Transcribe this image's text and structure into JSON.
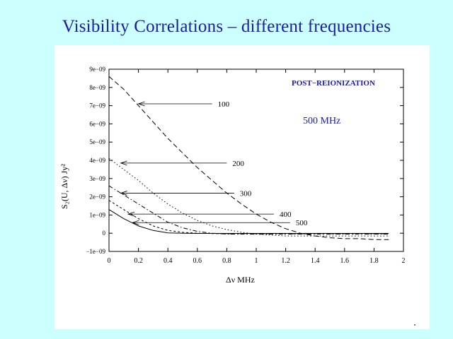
{
  "slide": {
    "title": "Visibility Correlations – different frequencies"
  },
  "chart_data": {
    "type": "line",
    "title": "POST−REIONIZATION",
    "subtitle": "500 MHz",
    "xlabel": "Δν  MHz",
    "ylabel": "S₂(U, Δν)    Jy²",
    "xlim": [
      0,
      2
    ],
    "ylim": [
      -1e-09,
      9e-09
    ],
    "x_ticks": [
      0,
      0.2,
      0.4,
      0.6,
      0.8,
      1,
      1.2,
      1.4,
      1.6,
      1.8,
      2
    ],
    "x_tick_labels": [
      "0",
      "0.2",
      "0.4",
      "0.6",
      "0.8",
      "1",
      "1.2",
      "1.4",
      "1.6",
      "1.8",
      "2"
    ],
    "y_ticks": [
      -1e-09,
      0,
      1e-09,
      2e-09,
      3e-09,
      4e-09,
      5e-09,
      6e-09,
      7e-09,
      8e-09,
      9e-09
    ],
    "y_tick_labels": [
      "−1e−09",
      "0",
      "1e−09",
      "2e−09",
      "3e−09",
      "4e−09",
      "5e−09",
      "6e−09",
      "7e−09",
      "8e−09",
      "9e−09"
    ],
    "series": [
      {
        "name": "100",
        "dash": "dashed",
        "x": [
          0,
          0.1,
          0.2,
          0.3,
          0.4,
          0.5,
          0.6,
          0.7,
          0.8,
          0.9,
          1.0,
          1.1,
          1.2,
          1.3,
          1.4,
          1.5,
          1.6,
          1.7,
          1.8,
          1.9
        ],
        "y": [
          8.6e-09,
          7.9e-09,
          7e-09,
          6.1e-09,
          5.2e-09,
          4.4e-09,
          3.6e-09,
          2.9e-09,
          2.2e-09,
          1.6e-09,
          1.05e-09,
          6e-10,
          2.5e-10,
          0.0,
          -1.5e-10,
          -2.5e-10,
          -3e-10,
          -3e-10,
          -3.5e-10,
          -3.5e-10
        ],
        "arrow_at_x": 0.2,
        "arrow_y": 7.1e-09,
        "label_x": 0.7
      },
      {
        "name": "200",
        "dash": "dotted",
        "x": [
          0,
          0.1,
          0.2,
          0.3,
          0.4,
          0.5,
          0.6,
          0.7,
          0.8,
          0.9,
          1.0,
          1.1,
          1.2,
          1.3,
          1.4,
          1.5,
          1.6,
          1.7,
          1.8,
          1.9
        ],
        "y": [
          4.1e-09,
          3.5e-09,
          2.9e-09,
          2.2e-09,
          1.6e-09,
          1.1e-09,
          7e-10,
          4e-10,
          2e-10,
          5e-11,
          -5e-11,
          -1e-10,
          -1.5e-10,
          -1.5e-10,
          -1.5e-10,
          -1.5e-10,
          -1.5e-10,
          -1.5e-10,
          -1.5e-10,
          -1.5e-10
        ],
        "arrow_at_x": 0.08,
        "arrow_y": 3.85e-09,
        "label_x": 0.8
      },
      {
        "name": "300",
        "dash": "dashdot",
        "x": [
          0,
          0.1,
          0.2,
          0.3,
          0.4,
          0.5,
          0.6,
          0.7,
          0.8,
          0.9,
          1.0,
          1.2,
          1.4,
          1.6,
          1.8,
          1.9
        ],
        "y": [
          2.6e-09,
          2.1e-09,
          1.6e-09,
          1.1e-09,
          6e-10,
          3e-10,
          1e-10,
          0.0,
          -5e-11,
          -5e-11,
          -5e-11,
          -5e-11,
          -5e-11,
          -5e-11,
          -5e-11,
          -5e-11
        ],
        "arrow_at_x": 0.08,
        "arrow_y": 2.2e-09,
        "label_x": 0.85
      },
      {
        "name": "400",
        "dash": "shortdash",
        "x": [
          0,
          0.1,
          0.2,
          0.3,
          0.4,
          0.5,
          0.6,
          0.7,
          0.8,
          1.0,
          1.2,
          1.4,
          1.6,
          1.8,
          1.9
        ],
        "y": [
          1.8e-09,
          1.3e-09,
          8e-10,
          4e-10,
          1.5e-10,
          5e-11,
          0.0,
          -2e-11,
          -3e-11,
          -3e-11,
          -3e-11,
          -3e-11,
          -3e-11,
          -3e-11,
          -3e-11
        ],
        "arrow_at_x": 0.13,
        "arrow_y": 1.05e-09,
        "label_x": 1.12
      },
      {
        "name": "500",
        "dash": "solid",
        "x": [
          0,
          0.1,
          0.2,
          0.3,
          0.4,
          0.5,
          0.6,
          0.8,
          1.0,
          1.2,
          1.4,
          1.6,
          1.8,
          1.9
        ],
        "y": [
          1.3e-09,
          8e-10,
          4e-10,
          1.5e-10,
          2e-11,
          0.0,
          -1e-11,
          -1e-11,
          -1e-11,
          -1e-11,
          -1e-11,
          -1e-11,
          -1e-11,
          -1e-11
        ],
        "arrow_at_x": 0.16,
        "arrow_y": 5.8e-10,
        "label_x": 1.23
      }
    ]
  }
}
